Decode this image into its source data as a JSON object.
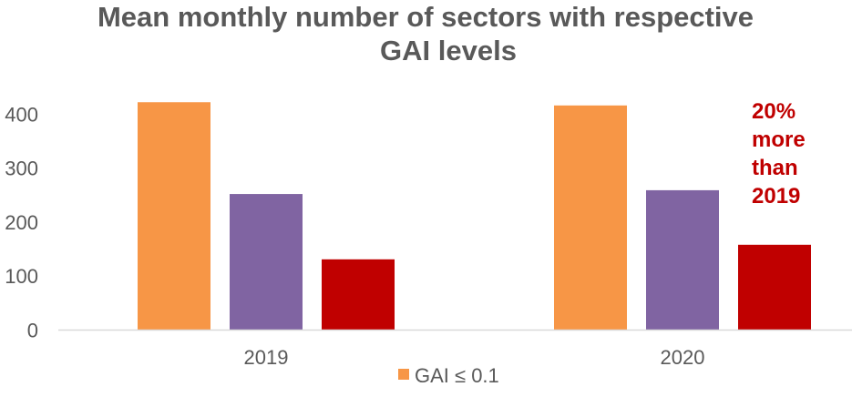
{
  "chart_data": {
    "type": "bar",
    "title_lines": [
      "Mean monthly number of sectors with respective",
      "GAI levels"
    ],
    "categories": [
      "2019",
      "2020"
    ],
    "series": [
      {
        "name": "GAI ≤ 0.1",
        "values": [
          422,
          416
        ],
        "color": "#F79646"
      },
      {
        "values": [
          252,
          259
        ],
        "color": "#8064A2"
      },
      {
        "values": [
          131,
          158
        ],
        "color": "#C00000"
      }
    ],
    "yticks": [
      "0",
      "100",
      "200",
      "300",
      "400"
    ],
    "ylim": [
      0,
      450
    ],
    "grid": false,
    "legend": {
      "position": "bottom",
      "entries": [
        "GAI ≤ 0.1"
      ]
    },
    "annotation": {
      "lines": [
        "20%",
        "more",
        "than",
        "2019"
      ],
      "color": "#C00000"
    }
  }
}
